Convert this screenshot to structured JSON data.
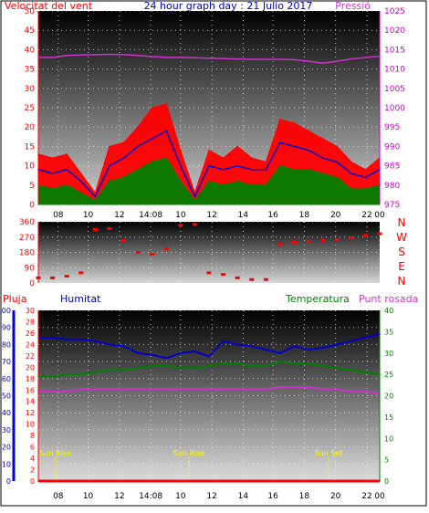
{
  "header": {
    "left_title": "Velocitat del vent",
    "center_title": "24 hour graph day : 21 Julio 2017",
    "right_title": "Pressió"
  },
  "colors": {
    "wind_gust": "#ff0000",
    "wind_avg": "#0000cc",
    "wind_speed": "#008000",
    "pressure": "#cc33cc",
    "direction": "#ff0000",
    "humidity": "#0000cc",
    "temperature": "#008000",
    "dewpoint": "#cc33cc",
    "rain": "#ff0000",
    "sun_marker": "#ffff00",
    "axis_red": "#ff0000",
    "axis_blue": "#0000cc",
    "axis_green": "#008000",
    "axis_magenta": "#cc00cc"
  },
  "x_ticks": [
    "08",
    "10",
    "12",
    "14:08",
    "10",
    "12",
    "14",
    "16",
    "18",
    "20",
    "22",
    "00"
  ],
  "chart_data": [
    {
      "type": "line",
      "name": "wind",
      "ylim": [
        0,
        50
      ],
      "yticks": [
        0,
        5,
        10,
        15,
        20,
        25,
        30,
        35,
        40,
        45,
        50
      ],
      "y2lim": [
        975,
        1025
      ],
      "y2ticks": [
        975,
        980,
        985,
        990,
        995,
        1000,
        1005,
        1010,
        1015,
        1020,
        1025
      ],
      "x": [
        0,
        1,
        2,
        3,
        4,
        5,
        6,
        7,
        8,
        9,
        10,
        11,
        12,
        13,
        14,
        15,
        16,
        17,
        18,
        19,
        20,
        21,
        22,
        23,
        24
      ],
      "series": [
        {
          "key": "gust",
          "values": [
            13,
            12,
            13,
            8,
            3,
            15,
            16,
            20,
            25,
            26,
            14,
            3,
            14,
            12,
            15,
            12,
            11,
            22,
            21,
            19,
            17,
            15,
            11,
            9,
            12
          ]
        },
        {
          "key": "average",
          "values": [
            9,
            8,
            9,
            6,
            2,
            10,
            12,
            15,
            17,
            19,
            10,
            2,
            10,
            9,
            10,
            9,
            9,
            16,
            15,
            14,
            12,
            11,
            8,
            7,
            9
          ]
        },
        {
          "key": "speed",
          "values": [
            5,
            4,
            5,
            3,
            1,
            6,
            7,
            9,
            11,
            12,
            6,
            1,
            6,
            5,
            6,
            5,
            5,
            10,
            9,
            9,
            8,
            7,
            4,
            4,
            5
          ]
        },
        {
          "key": "pressure",
          "axis": "right",
          "values": [
            1013.0,
            1013.0,
            1013.5,
            1013.6,
            1013.7,
            1013.8,
            1013.7,
            1013.5,
            1013.2,
            1013.0,
            1013.0,
            1012.9,
            1012.8,
            1012.7,
            1012.6,
            1012.5,
            1012.5,
            1012.5,
            1012.4,
            1012.0,
            1011.5,
            1012.0,
            1012.6,
            1013.0,
            1013.3
          ]
        }
      ]
    },
    {
      "type": "scatter",
      "name": "wind-direction",
      "ylim": [
        0,
        360
      ],
      "yticks": [
        0,
        90,
        180,
        270,
        360
      ],
      "direction_labels": [
        "N",
        "W",
        "S",
        "E",
        "N"
      ],
      "x": [
        0,
        1,
        2,
        3,
        4,
        5,
        6,
        7,
        8,
        9,
        10,
        11,
        12,
        13,
        14,
        15,
        16,
        17,
        18,
        19,
        20,
        21,
        22,
        23,
        24
      ],
      "values": [
        30,
        30,
        40,
        60,
        315,
        320,
        250,
        180,
        170,
        200,
        340,
        345,
        60,
        50,
        30,
        20,
        20,
        230,
        240,
        245,
        250,
        255,
        265,
        280,
        290
      ]
    },
    {
      "type": "line",
      "name": "humidity-temperature",
      "legend": [
        "Pluja",
        "Humitat",
        "Temperatura",
        "Punt rosada"
      ],
      "left_outer_ticks": [
        0,
        10,
        20,
        30,
        40,
        50,
        60,
        70,
        80,
        90,
        100
      ],
      "left_inner_ticks": [
        0,
        2,
        4,
        6,
        8,
        10,
        12,
        14,
        16,
        18,
        20,
        22,
        24,
        26,
        28,
        30
      ],
      "right_ticks": [
        0,
        5,
        10,
        15,
        20,
        25,
        30,
        35,
        40
      ],
      "ylim_humidity": [
        0,
        100
      ],
      "ylim_temp": [
        0,
        40
      ],
      "x": [
        0,
        1,
        2,
        3,
        4,
        5,
        6,
        7,
        8,
        9,
        10,
        11,
        12,
        13,
        14,
        15,
        16,
        17,
        18,
        19,
        20,
        21,
        22,
        23,
        24
      ],
      "series": [
        {
          "key": "humidity",
          "values": [
            84,
            84,
            83,
            83,
            82,
            80,
            79,
            75,
            74,
            72,
            75,
            76,
            73,
            82,
            80,
            79,
            77,
            75,
            79,
            77,
            78,
            80,
            82,
            84,
            86
          ]
        },
        {
          "key": "temperature",
          "values": [
            24.5,
            24.5,
            25,
            25,
            25.5,
            26,
            26,
            26.5,
            27,
            27,
            26.5,
            26.5,
            27,
            27.5,
            27.5,
            27,
            27,
            28,
            27.5,
            27.5,
            27,
            26.5,
            26,
            25.5,
            25
          ]
        },
        {
          "key": "dewpoint",
          "values": [
            21,
            21,
            21,
            21.5,
            21.5,
            21.5,
            21.5,
            21.5,
            21.5,
            21.5,
            21.5,
            21.5,
            21.5,
            21.5,
            21.5,
            21.5,
            21.5,
            22,
            22,
            22,
            21.5,
            21.5,
            21,
            21,
            20.5
          ]
        },
        {
          "key": "rain",
          "values": [
            0,
            0,
            0,
            0,
            0,
            0,
            0,
            0,
            0,
            0,
            0,
            0,
            0,
            0,
            0,
            0,
            0,
            0,
            0,
            0,
            0,
            0,
            0,
            0,
            0
          ]
        }
      ],
      "sun_events": [
        {
          "label": "Sun Rise",
          "x": 1.2
        },
        {
          "label": "Sun Rise",
          "x": 10.6
        },
        {
          "label": "Sun Set",
          "x": 20.4
        }
      ]
    }
  ]
}
